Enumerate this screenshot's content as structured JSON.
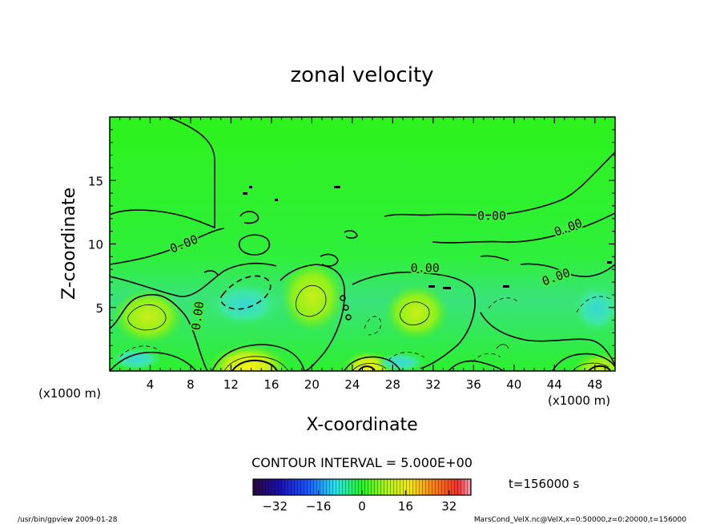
{
  "chart_data": {
    "type": "heatmap",
    "title": "zonal velocity",
    "xlabel": "X-coordinate",
    "ylabel": "Z-coordinate",
    "x_unit_left": "(x1000 m)",
    "x_unit_right": "(x1000 m)",
    "xlim": [
      0,
      50
    ],
    "ylim": [
      0,
      20
    ],
    "x_ticks": [
      4,
      8,
      12,
      16,
      20,
      24,
      28,
      32,
      36,
      40,
      44,
      48
    ],
    "y_ticks": [
      5,
      10,
      15
    ],
    "contour_interval_text": "CONTOUR INTERVAL = 5.000E+00",
    "contour_labels": [
      {
        "text": "0.00",
        "x": 7.5,
        "z": 9.7,
        "angle": -22
      },
      {
        "text": "0.00",
        "x": 37.8,
        "z": 11.9,
        "angle": 0
      },
      {
        "text": "0.00",
        "x": 45.5,
        "z": 11.0,
        "angle": -20
      },
      {
        "text": "0.00",
        "x": 31.2,
        "z": 7.8,
        "angle": 0
      },
      {
        "text": "0.00",
        "x": 44.3,
        "z": 7.1,
        "angle": -20
      },
      {
        "text": "0.00",
        "x": 9.1,
        "z": 4.3,
        "angle": -82
      }
    ],
    "color_scale": {
      "min": -40,
      "max": 40,
      "ticks": [
        -32,
        -16,
        0,
        16,
        32
      ]
    },
    "time_label": "t=156000 s"
  },
  "footer": {
    "left": "/usr/bin/gpview  2009-01-28",
    "right": "MarsCond_VelX.nc@VelX,x=0:50000,z=0:20000,t=156000"
  }
}
